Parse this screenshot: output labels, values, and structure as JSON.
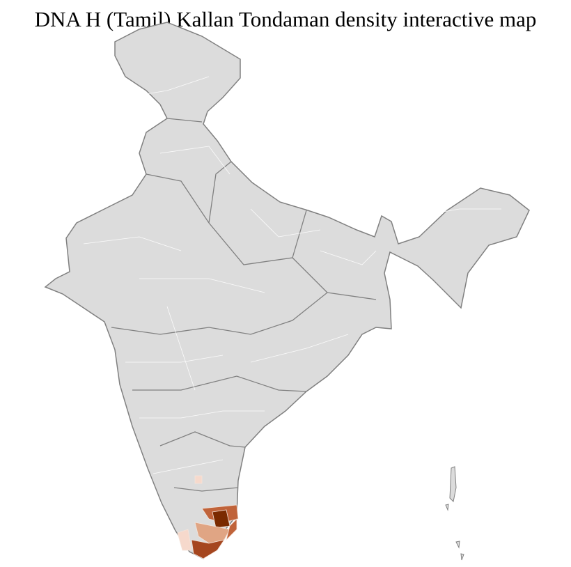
{
  "title": "DNA H (Tamil) Kallan Tondaman density interactive map",
  "map": {
    "region": "India districts",
    "base_fill": "#dcdcdc",
    "district_border": "#ffffff",
    "state_border": "#808080",
    "density_colors": [
      "#f6d9cc",
      "#e0a584",
      "#c0633a",
      "#a5461f",
      "#7a2a00"
    ],
    "highlighted_area": "Tamil Nadu / southern Kerala"
  }
}
